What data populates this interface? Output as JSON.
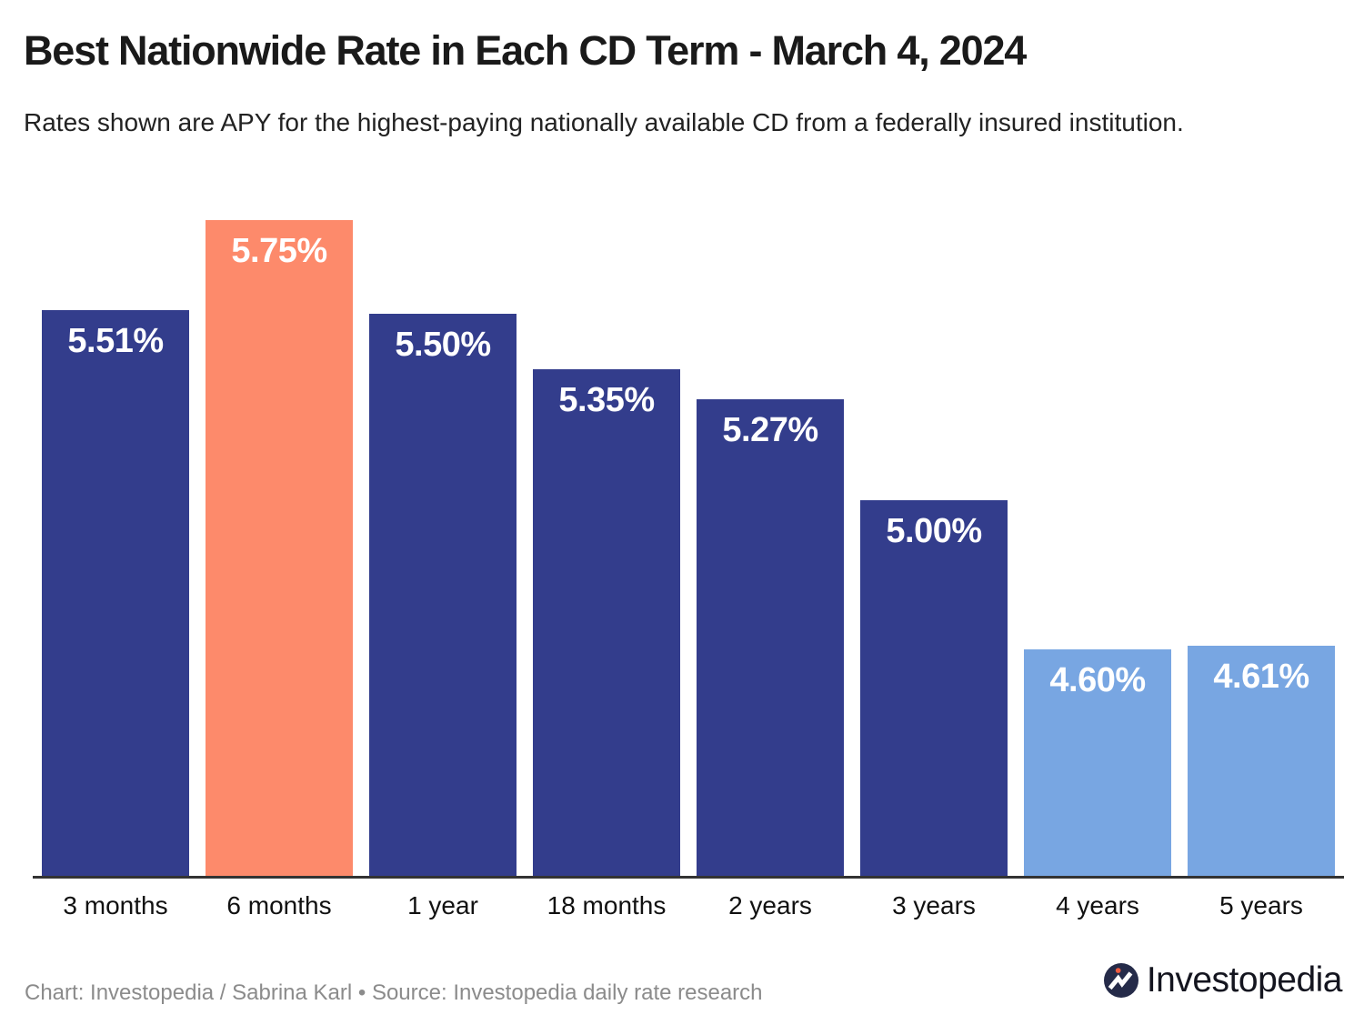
{
  "header": {
    "title": "Best Nationwide Rate in Each CD Term - March 4, 2024",
    "subtitle": "Rates shown are APY for the highest-paying nationally available CD from a federally insured institution."
  },
  "footer": {
    "credit": "Chart: Investopedia / Sabrina Karl • Source: Investopedia daily rate research",
    "logo_text": "Investopedia",
    "logo_icon": "investopedia-chart-line-icon"
  },
  "colors": {
    "bar_default": "#333d8c",
    "bar_highlight": "#fd8a6b",
    "bar_light": "#78a6e2",
    "value_label": "#ffffff",
    "axis_line": "#333333",
    "logo_circle": "#252b49",
    "logo_dot": "#ef5b3f"
  },
  "chart_data": {
    "type": "bar",
    "title": "Best Nationwide Rate in Each CD Term - March 4, 2024",
    "categories": [
      "3 months",
      "6 months",
      "1 year",
      "18 months",
      "2 years",
      "3 years",
      "4 years",
      "5 years"
    ],
    "values": [
      5.51,
      5.75,
      5.5,
      5.35,
      5.27,
      5.0,
      4.6,
      4.61
    ],
    "value_labels": [
      "5.51%",
      "5.75%",
      "5.50%",
      "5.35%",
      "5.27%",
      "5.00%",
      "4.60%",
      "4.61%"
    ],
    "bar_styles": [
      "default",
      "highlight",
      "default",
      "default",
      "default",
      "default",
      "light",
      "light"
    ],
    "highlight_category": "6 months",
    "ylim": [
      3.99,
      5.75
    ],
    "xlabel": "",
    "ylabel": "",
    "grid": false,
    "legend": false,
    "value_label_position": "inside-top"
  }
}
